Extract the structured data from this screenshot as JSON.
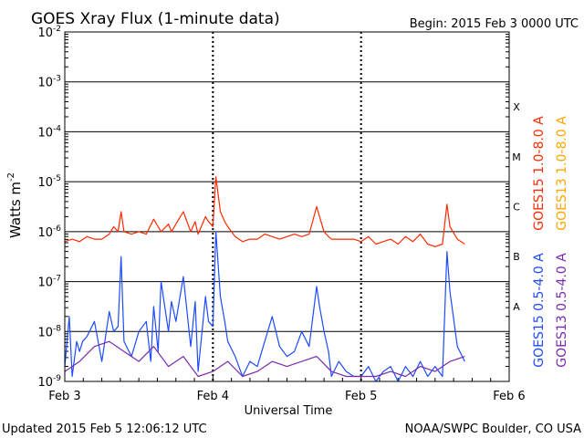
{
  "header": {
    "title": "GOES Xray Flux (1-minute data)",
    "begin": "Begin:  2015 Feb 3 0000 UTC"
  },
  "footer": {
    "updated": "Updated 2015 Feb  5 12:06:12 UTC",
    "credit": "NOAA/SWPC Boulder, CO USA"
  },
  "colors": {
    "goes15_long": "#ff2a00",
    "goes13_long": "#ffa500",
    "goes15_short": "#1e4bff",
    "goes13_short": "#7a2bb0"
  },
  "chart_data": {
    "type": "line",
    "xlabel": "Universal Time",
    "ylabel": "Watts m",
    "ylabel_superscript": "-2",
    "yscale": "log",
    "ylim_exp": [
      -9,
      -2
    ],
    "xlim": [
      0,
      3
    ],
    "x_unit": "days from 2015 Feb 3 0000 UTC",
    "x_ticks": [
      {
        "x": 0,
        "label": "Feb 3"
      },
      {
        "x": 1,
        "label": "Feb 4"
      },
      {
        "x": 2,
        "label": "Feb 5"
      },
      {
        "x": 3,
        "label": "Feb 6"
      }
    ],
    "y_tick_exps": [
      -9,
      -8,
      -7,
      -6,
      -5,
      -4,
      -3,
      -2
    ],
    "y_tick_base": "10",
    "grid": true,
    "flare_classes": [
      {
        "label": "X",
        "exp": -3.5
      },
      {
        "label": "M",
        "exp": -4.5
      },
      {
        "label": "C",
        "exp": -5.5
      },
      {
        "label": "B",
        "exp": -6.5
      },
      {
        "label": "A",
        "exp": -7.5
      }
    ],
    "legend": [
      {
        "label": "GOES15 1.0-8.0 A",
        "color": "#ff2a00"
      },
      {
        "label": "GOES13 1.0-8.0 A",
        "color": "#ffa500"
      },
      {
        "label": "GOES15 0.5-4.0 A",
        "color": "#1e4bff"
      },
      {
        "label": "GOES13 0.5-4.0 A",
        "color": "#7a2bb0"
      }
    ],
    "series": [
      {
        "name": "GOES15 1.0-8.0 A",
        "color": "#ff2a00",
        "x": [
          0,
          0.05,
          0.1,
          0.15,
          0.2,
          0.25,
          0.3,
          0.33,
          0.36,
          0.38,
          0.4,
          0.45,
          0.5,
          0.55,
          0.6,
          0.65,
          0.7,
          0.72,
          0.75,
          0.8,
          0.85,
          0.88,
          0.9,
          0.95,
          0.97,
          1.0,
          1.02,
          1.05,
          1.08,
          1.1,
          1.15,
          1.2,
          1.25,
          1.3,
          1.35,
          1.4,
          1.45,
          1.5,
          1.55,
          1.6,
          1.65,
          1.7,
          1.72,
          1.75,
          1.78,
          1.8,
          1.85,
          1.9,
          1.95,
          2.0,
          2.05,
          2.1,
          2.15,
          2.2,
          2.25,
          2.3,
          2.35,
          2.4,
          2.45,
          2.5,
          2.55,
          2.58,
          2.6,
          2.65,
          2.7
        ],
        "y_exp": [
          -6.2,
          -6.15,
          -6.2,
          -6.1,
          -6.15,
          -6.15,
          -6.05,
          -5.9,
          -6.0,
          -5.6,
          -6.0,
          -6.05,
          -6.0,
          -6.05,
          -5.75,
          -6.0,
          -5.85,
          -6.0,
          -5.85,
          -5.6,
          -6.0,
          -5.8,
          -6.05,
          -5.7,
          -5.8,
          -5.9,
          -4.9,
          -5.6,
          -5.8,
          -5.9,
          -6.1,
          -6.2,
          -6.15,
          -6.15,
          -6.05,
          -6.1,
          -6.15,
          -6.1,
          -6.05,
          -6.1,
          -6.05,
          -5.5,
          -5.7,
          -6.0,
          -6.1,
          -6.15,
          -6.15,
          -6.15,
          -6.15,
          -6.2,
          -6.1,
          -6.25,
          -6.2,
          -6.15,
          -6.25,
          -6.1,
          -6.2,
          -6.05,
          -6.25,
          -6.3,
          -6.25,
          -5.45,
          -5.9,
          -6.15,
          -6.25
        ]
      },
      {
        "name": "GOES15 0.5-4.0 A",
        "color": "#1e4bff",
        "x": [
          0,
          0.03,
          0.05,
          0.08,
          0.1,
          0.12,
          0.15,
          0.2,
          0.25,
          0.28,
          0.3,
          0.33,
          0.36,
          0.38,
          0.4,
          0.45,
          0.5,
          0.55,
          0.58,
          0.6,
          0.63,
          0.65,
          0.7,
          0.72,
          0.75,
          0.8,
          0.85,
          0.88,
          0.9,
          0.95,
          0.97,
          1.0,
          1.02,
          1.05,
          1.08,
          1.1,
          1.15,
          1.2,
          1.25,
          1.3,
          1.35,
          1.4,
          1.45,
          1.5,
          1.55,
          1.6,
          1.65,
          1.7,
          1.72,
          1.75,
          1.78,
          1.8,
          1.85,
          1.9,
          1.95,
          2.0,
          2.05,
          2.1,
          2.15,
          2.2,
          2.25,
          2.3,
          2.35,
          2.4,
          2.45,
          2.5,
          2.55,
          2.58,
          2.6,
          2.65,
          2.7
        ],
        "y_exp": [
          -8.7,
          -7.7,
          -8.9,
          -8.2,
          -8.4,
          -8.2,
          -8.1,
          -7.8,
          -8.6,
          -8.0,
          -7.6,
          -8.0,
          -7.9,
          -6.5,
          -8.2,
          -8.5,
          -8.0,
          -7.8,
          -8.6,
          -7.5,
          -8.4,
          -7.0,
          -8.0,
          -7.4,
          -7.8,
          -6.9,
          -8.3,
          -7.4,
          -8.8,
          -7.3,
          -7.8,
          -7.9,
          -6.0,
          -7.3,
          -7.8,
          -8.2,
          -8.5,
          -8.9,
          -8.6,
          -8.7,
          -8.2,
          -7.7,
          -8.3,
          -8.5,
          -8.4,
          -8.0,
          -8.3,
          -7.1,
          -7.5,
          -8.0,
          -8.4,
          -8.9,
          -8.6,
          -8.8,
          -8.9,
          -8.9,
          -8.7,
          -9.0,
          -8.8,
          -8.7,
          -9.0,
          -8.7,
          -8.9,
          -8.6,
          -8.9,
          -8.7,
          -8.9,
          -6.4,
          -7.2,
          -8.3,
          -8.6
        ]
      },
      {
        "name": "GOES13 0.5-4.0 A",
        "color": "#7a2bb0",
        "x": [
          0,
          0.1,
          0.2,
          0.3,
          0.4,
          0.5,
          0.6,
          0.7,
          0.8,
          0.9,
          1.0,
          1.1,
          1.2,
          1.3,
          1.4,
          1.5,
          1.6,
          1.7,
          1.8,
          1.9,
          2.0,
          2.1,
          2.2,
          2.3,
          2.4,
          2.5,
          2.6,
          2.7
        ],
        "y_exp": [
          -8.8,
          -8.6,
          -8.3,
          -8.2,
          -8.4,
          -8.6,
          -8.3,
          -8.7,
          -8.5,
          -8.9,
          -8.8,
          -8.6,
          -8.9,
          -8.8,
          -8.6,
          -8.7,
          -8.6,
          -8.5,
          -8.8,
          -8.9,
          -8.9,
          -8.9,
          -8.8,
          -8.9,
          -8.7,
          -8.8,
          -8.6,
          -8.5
        ]
      }
    ]
  }
}
